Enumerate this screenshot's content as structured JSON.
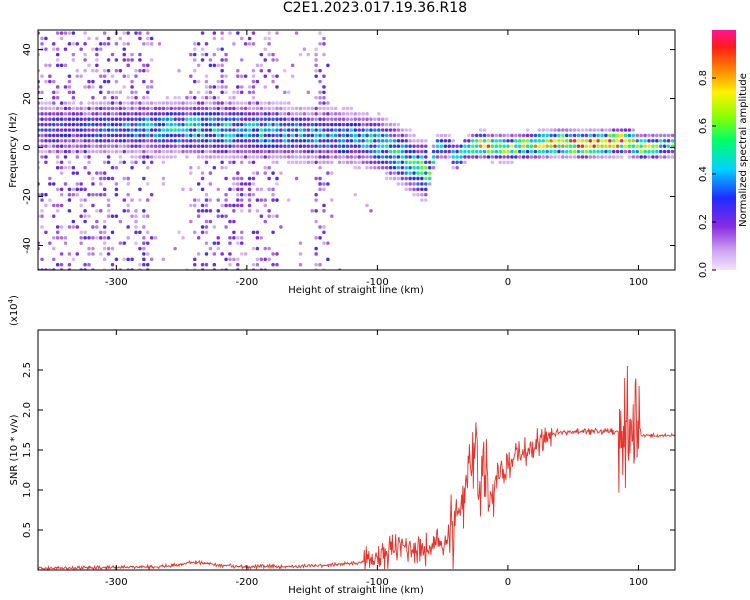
{
  "figure": {
    "title": "C2E1.2023.017.19.36.R18"
  },
  "chart_data": [
    {
      "type": "heatmap",
      "title": "C2E1.2023.017.19.36.R18",
      "xlabel": "Height of straight line (km)",
      "ylabel": "Frequency (Hz)",
      "xlim": [
        -360,
        128
      ],
      "ylim": [
        -50,
        48
      ],
      "x_ticks": [
        -300,
        -200,
        -100,
        0,
        100
      ],
      "y_ticks": [
        -40,
        -20,
        0,
        20,
        40
      ],
      "colorbar": {
        "label": "Normalized spectral amplitude",
        "range": [
          0,
          1
        ],
        "ticks": [
          0.0,
          0.2,
          0.4,
          0.6,
          0.8
        ],
        "colormap": [
          "#f3e3fb",
          "#cfa4f2",
          "#8a2be2",
          "#1f2cff",
          "#00d2ff",
          "#00ff66",
          "#8cff00",
          "#fff200",
          "#ff7f00",
          "#ff1b1b",
          "#ff1493"
        ]
      },
      "ridge": {
        "x": [
          -330,
          -300,
          -250,
          -200,
          -150,
          -120,
          -100,
          -80,
          -70,
          -60,
          -55,
          -45,
          -40,
          -30,
          -20,
          -10,
          0,
          20,
          40,
          60,
          80,
          90,
          95,
          100,
          128
        ],
        "center_hz": [
          8,
          8,
          8,
          7,
          5,
          4,
          2,
          -4,
          -8,
          -10,
          0,
          0,
          -4,
          0,
          1,
          0,
          0,
          1,
          2,
          1,
          2,
          3,
          2,
          0,
          1
        ],
        "peak_amplitude": [
          0.3,
          0.35,
          0.45,
          0.45,
          0.4,
          0.4,
          0.45,
          0.5,
          0.55,
          0.6,
          0.5,
          0.4,
          0.55,
          0.5,
          0.9,
          0.7,
          0.7,
          0.75,
          0.9,
          0.95,
          0.95,
          0.9,
          0.8,
          0.7,
          0.5
        ]
      },
      "grid": false
    },
    {
      "type": "line",
      "xlabel": "Height of straight line (km)",
      "ylabel": "SNR (10 * v/v)",
      "y_multiplier_label": "(x10",
      "y_multiplier_exp": "4",
      "xlim": [
        -360,
        128
      ],
      "ylim": [
        0,
        30000
      ],
      "x_ticks": [
        -300,
        -200,
        -100,
        0,
        100
      ],
      "y_ticks": [
        5000,
        10000,
        15000,
        20000,
        25000
      ],
      "y_tick_labels": [
        "0.5",
        "1.0",
        "1.5",
        "2.0",
        "2.5"
      ],
      "color": "#e8322b",
      "series": [
        {
          "x": [
            -360,
            -300,
            -260,
            -240,
            -220,
            -200,
            -150,
            -130,
            -110,
            -100,
            -90,
            -80,
            -70,
            -60,
            -50,
            -40,
            -35,
            -30,
            -25,
            -20,
            -15,
            -10,
            -5,
            0,
            10,
            20,
            30,
            40,
            60,
            80,
            90,
            95,
            100,
            110,
            128
          ],
          "y": [
            200,
            300,
            500,
            1000,
            600,
            400,
            500,
            700,
            1000,
            1500,
            2500,
            3000,
            2800,
            2500,
            3500,
            5000,
            9000,
            14000,
            15000,
            12500,
            10500,
            11000,
            12500,
            13000,
            14500,
            15500,
            16800,
            17200,
            17300,
            17400,
            17500,
            17000,
            16900,
            16800,
            16800
          ]
        }
      ],
      "grid": false
    }
  ]
}
